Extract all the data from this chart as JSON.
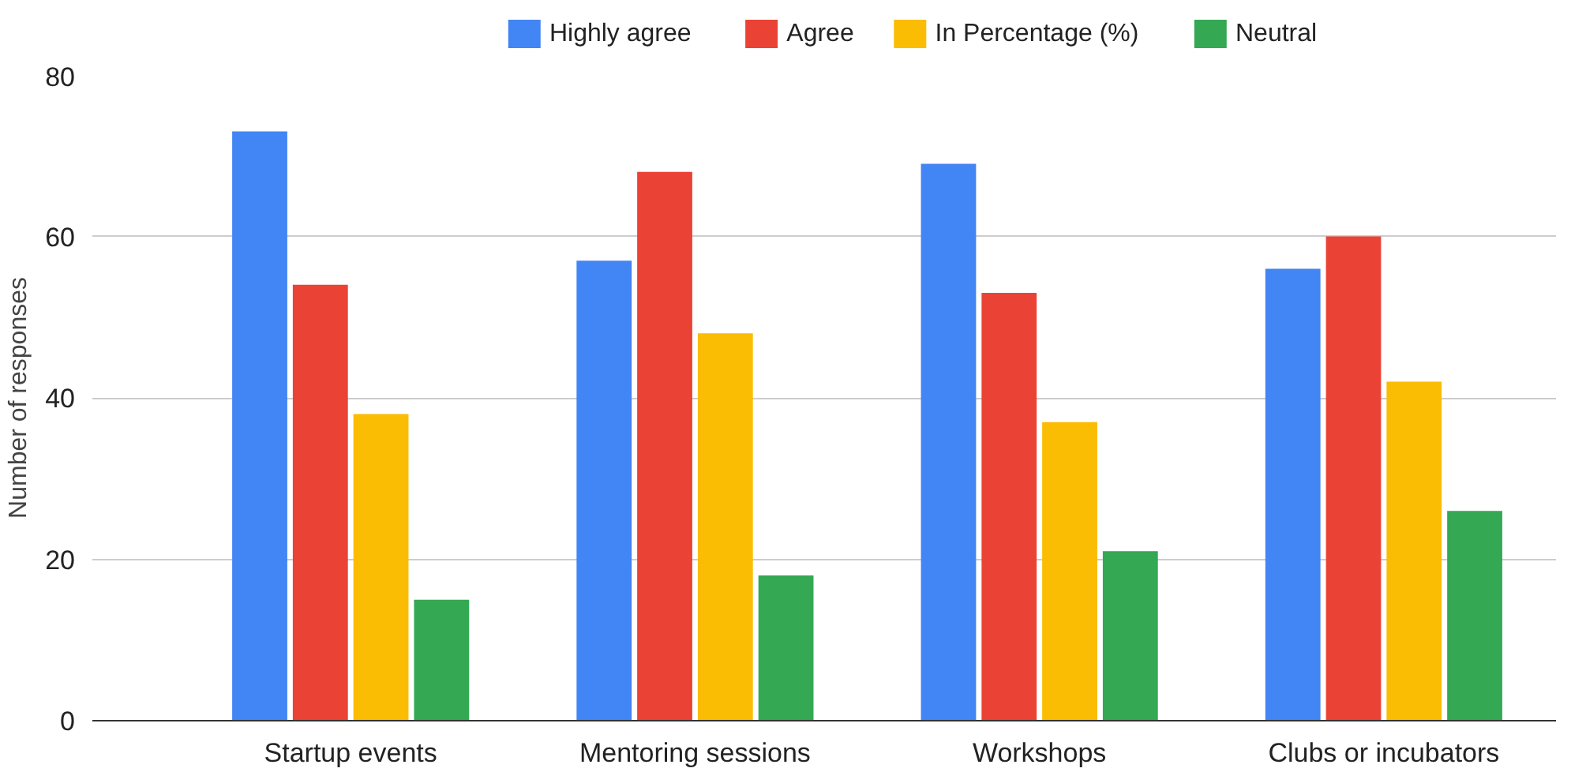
{
  "chart_data": {
    "type": "bar",
    "ylabel": "Number of responses",
    "categories": [
      "Startup events",
      "Mentoring sessions",
      "Workshops",
      "Clubs or incubators"
    ],
    "series": [
      {
        "name": "Highly agree",
        "color": "#4285f4",
        "values": [
          73,
          57,
          69,
          56
        ]
      },
      {
        "name": "Agree",
        "color": "#ea4335",
        "values": [
          54,
          68,
          53,
          60
        ]
      },
      {
        "name": "In Percentage (%)",
        "color": "#fbbc04",
        "values": [
          38,
          48,
          37,
          42
        ]
      },
      {
        "name": "Neutral",
        "color": "#34a853",
        "values": [
          15,
          18,
          21,
          26
        ]
      }
    ],
    "ylim": [
      0,
      80
    ],
    "yticks": [
      0,
      20,
      40,
      60,
      80
    ],
    "grid": "y",
    "legend": "top"
  }
}
